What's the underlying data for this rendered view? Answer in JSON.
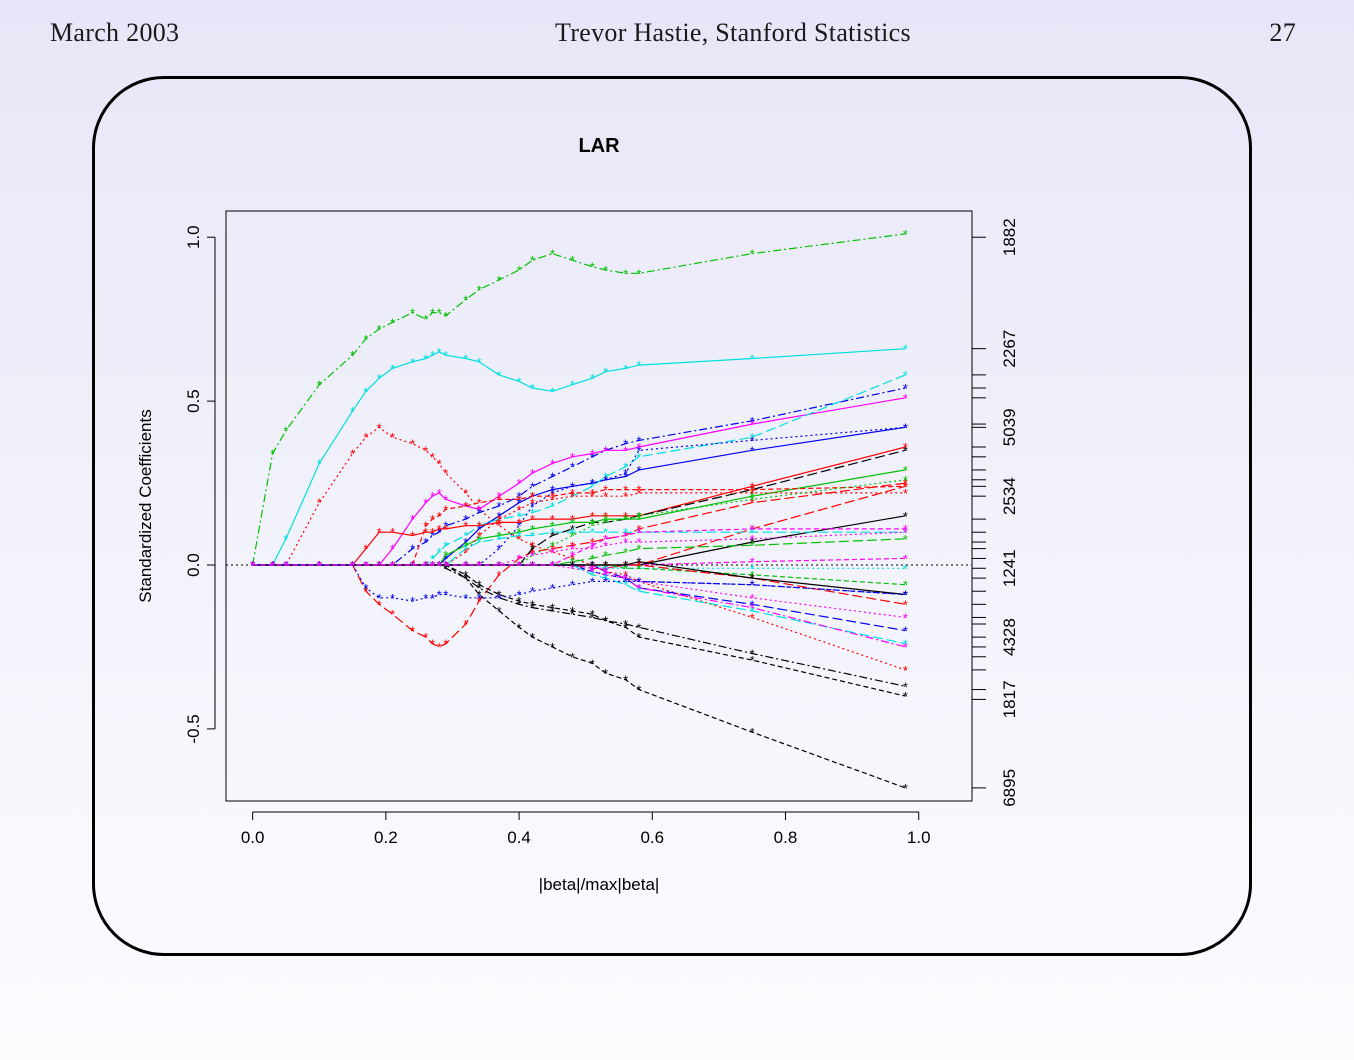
{
  "header": {
    "left": "March 2003",
    "center": "Trevor Hastie, Stanford Statistics",
    "right": "27"
  },
  "chart_data": {
    "type": "line",
    "title": "LAR",
    "xlabel": "|beta|/max|beta|",
    "ylabel": "Standardized Coefficients",
    "xlim": [
      -0.04,
      1.08
    ],
    "ylim": [
      -0.72,
      1.08
    ],
    "x_ticks": [
      "0.0",
      "0.2",
      "0.4",
      "0.6",
      "0.8",
      "1.0"
    ],
    "y_ticks": [
      "-0.5",
      "0.0",
      "0.5",
      "1.0"
    ],
    "right_axis_labels": [
      {
        "label": "1882",
        "y": 1.0
      },
      {
        "label": "2267",
        "y": 0.66
      },
      {
        "label": "5039",
        "y": 0.42
      },
      {
        "label": "2534",
        "y": 0.21
      },
      {
        "label": "1241",
        "y": -0.01
      },
      {
        "label": "4328",
        "y": -0.22
      },
      {
        "label": "1817",
        "y": -0.41
      },
      {
        "label": "6895",
        "y": -0.68
      }
    ],
    "right_axis_extra_ticks": [
      0.58,
      0.54,
      0.51,
      0.43,
      0.36,
      0.33,
      0.29,
      0.26,
      0.24,
      0.14,
      0.1,
      0.07,
      0.05,
      0.02,
      -0.04,
      -0.08,
      -0.12,
      -0.16,
      -0.18,
      -0.25,
      -0.28,
      -0.32,
      -0.38
    ],
    "x_steps": [
      0.0,
      0.03,
      0.05,
      0.1,
      0.15,
      0.17,
      0.19,
      0.21,
      0.24,
      0.26,
      0.27,
      0.28,
      0.29,
      0.32,
      0.34,
      0.37,
      0.4,
      0.42,
      0.45,
      0.48,
      0.51,
      0.53,
      0.56,
      0.58,
      0.75,
      0.98
    ],
    "series": [
      {
        "color": "#00c000",
        "dash": "8,3,2,3",
        "values": [
          0.0,
          0.34,
          0.41,
          0.55,
          0.64,
          0.69,
          0.72,
          0.74,
          0.77,
          0.75,
          0.77,
          0.77,
          0.76,
          0.81,
          0.84,
          0.87,
          0.9,
          0.93,
          0.95,
          0.93,
          0.91,
          0.9,
          0.89,
          0.89,
          0.95,
          1.01
        ]
      },
      {
        "color": "#00e0e0",
        "dash": "",
        "values": [
          0.0,
          0.0,
          0.08,
          0.31,
          0.47,
          0.53,
          0.57,
          0.6,
          0.62,
          0.63,
          0.64,
          0.65,
          0.64,
          0.63,
          0.62,
          0.58,
          0.56,
          0.54,
          0.53,
          0.55,
          0.57,
          0.59,
          0.6,
          0.61,
          0.63,
          0.66
        ]
      },
      {
        "color": "#ff0000",
        "dash": "2,3",
        "values": [
          0.0,
          0.0,
          0.0,
          0.19,
          0.34,
          0.39,
          0.42,
          0.39,
          0.37,
          0.35,
          0.33,
          0.31,
          0.28,
          0.22,
          0.17,
          0.12,
          0.08,
          0.06,
          0.04,
          0.02,
          0.0,
          -0.02,
          -0.03,
          -0.05,
          -0.16,
          -0.32
        ]
      },
      {
        "color": "#ff0000",
        "dash": "10,4",
        "values": [
          0.0,
          0.0,
          0.0,
          0.0,
          0.0,
          -0.08,
          -0.12,
          -0.15,
          -0.2,
          -0.22,
          -0.24,
          -0.25,
          -0.24,
          -0.18,
          -0.11,
          -0.03,
          0.02,
          0.04,
          0.05,
          0.06,
          0.07,
          0.08,
          0.09,
          0.11,
          0.19,
          0.25
        ]
      },
      {
        "color": "#000000",
        "dash": "5,3",
        "values": [
          0.0,
          0.0,
          0.0,
          0.0,
          0.0,
          0.0,
          0.0,
          0.0,
          0.0,
          0.0,
          0.0,
          0.0,
          0.0,
          -0.04,
          -0.09,
          -0.14,
          -0.19,
          -0.22,
          -0.25,
          -0.28,
          -0.3,
          -0.33,
          -0.35,
          -0.38,
          -0.51,
          -0.68
        ]
      },
      {
        "color": "#000000",
        "dash": "8,3,2,3",
        "values": [
          0.0,
          0.0,
          0.0,
          0.0,
          0.0,
          0.0,
          0.0,
          0.0,
          0.0,
          0.0,
          0.0,
          0.0,
          -0.01,
          -0.04,
          -0.07,
          -0.1,
          -0.12,
          -0.13,
          -0.14,
          -0.15,
          -0.16,
          -0.17,
          -0.18,
          -0.19,
          -0.27,
          -0.37
        ]
      },
      {
        "color": "#000000",
        "dash": "5,3",
        "values": [
          0.0,
          0.0,
          0.0,
          0.0,
          0.0,
          0.0,
          0.0,
          0.0,
          0.0,
          0.0,
          0.0,
          0.0,
          0.0,
          -0.03,
          -0.06,
          -0.09,
          -0.11,
          -0.12,
          -0.13,
          -0.14,
          -0.15,
          -0.17,
          -0.19,
          -0.22,
          -0.29,
          -0.4
        ]
      },
      {
        "color": "#0000ee",
        "dash": "8,3,2,3",
        "values": [
          0.0,
          0.0,
          0.0,
          0.0,
          0.0,
          0.0,
          0.0,
          0.0,
          0.05,
          0.07,
          0.09,
          0.1,
          0.12,
          0.14,
          0.16,
          0.18,
          0.21,
          0.24,
          0.27,
          0.3,
          0.33,
          0.35,
          0.37,
          0.38,
          0.44,
          0.54
        ]
      },
      {
        "color": "#ff00ff",
        "dash": "",
        "values": [
          0.0,
          0.0,
          0.0,
          0.0,
          0.0,
          0.0,
          0.0,
          0.05,
          0.14,
          0.19,
          0.21,
          0.22,
          0.2,
          0.18,
          0.17,
          0.21,
          0.25,
          0.28,
          0.31,
          0.33,
          0.34,
          0.35,
          0.35,
          0.36,
          0.43,
          0.51
        ]
      },
      {
        "color": "#0000ee",
        "dash": "",
        "values": [
          0.0,
          0.0,
          0.0,
          0.0,
          0.0,
          0.0,
          0.0,
          0.0,
          0.0,
          0.0,
          0.0,
          0.0,
          0.02,
          0.07,
          0.11,
          0.15,
          0.19,
          0.21,
          0.23,
          0.24,
          0.25,
          0.26,
          0.27,
          0.29,
          0.35,
          0.42
        ]
      },
      {
        "color": "#00e0e0",
        "dash": "10,4",
        "values": [
          0.0,
          0.0,
          0.0,
          0.0,
          0.0,
          0.0,
          0.0,
          0.0,
          0.0,
          0.0,
          0.02,
          0.04,
          0.06,
          0.09,
          0.12,
          0.14,
          0.15,
          0.16,
          0.18,
          0.21,
          0.24,
          0.27,
          0.3,
          0.33,
          0.39,
          0.58
        ]
      },
      {
        "color": "#0000ee",
        "dash": "2,3",
        "values": [
          0.0,
          0.0,
          0.0,
          0.0,
          0.0,
          0.0,
          0.0,
          0.0,
          0.0,
          0.0,
          0.0,
          0.0,
          0.0,
          0.0,
          0.0,
          0.05,
          0.12,
          0.18,
          0.22,
          0.24,
          0.25,
          0.26,
          0.28,
          0.35,
          0.38,
          0.42
        ]
      },
      {
        "color": "#ff0000",
        "dash": "",
        "values": [
          0.0,
          0.0,
          0.0,
          0.0,
          0.0,
          0.05,
          0.1,
          0.1,
          0.09,
          0.1,
          0.1,
          0.11,
          0.11,
          0.12,
          0.12,
          0.13,
          0.13,
          0.14,
          0.14,
          0.14,
          0.15,
          0.15,
          0.15,
          0.15,
          0.24,
          0.36
        ]
      },
      {
        "color": "#000000",
        "dash": "10,4",
        "values": [
          0.0,
          0.0,
          0.0,
          0.0,
          0.0,
          0.0,
          0.0,
          0.0,
          0.0,
          0.0,
          0.0,
          0.0,
          0.0,
          0.0,
          0.0,
          0.0,
          0.0,
          0.05,
          0.09,
          0.11,
          0.13,
          0.13,
          0.14,
          0.15,
          0.23,
          0.35
        ]
      },
      {
        "color": "#00c000",
        "dash": "",
        "values": [
          0.0,
          0.0,
          0.0,
          0.0,
          0.0,
          0.0,
          0.0,
          0.0,
          0.0,
          0.0,
          0.0,
          0.0,
          0.03,
          0.06,
          0.08,
          0.09,
          0.1,
          0.11,
          0.12,
          0.13,
          0.13,
          0.14,
          0.14,
          0.14,
          0.21,
          0.29
        ]
      },
      {
        "color": "#ff0000",
        "dash": "5,3",
        "values": [
          0.0,
          0.0,
          0.0,
          0.0,
          0.0,
          0.0,
          0.0,
          0.0,
          0.0,
          0.12,
          0.14,
          0.15,
          0.17,
          0.18,
          0.19,
          0.2,
          0.2,
          0.21,
          0.21,
          0.22,
          0.22,
          0.23,
          0.23,
          0.23,
          0.23,
          0.24
        ]
      },
      {
        "color": "#ff0000",
        "dash": "2,3",
        "values": [
          0.0,
          0.0,
          0.0,
          0.0,
          0.0,
          0.0,
          0.0,
          0.0,
          0.0,
          0.0,
          0.0,
          0.0,
          0.0,
          0.04,
          0.09,
          0.14,
          0.17,
          0.19,
          0.2,
          0.21,
          0.21,
          0.21,
          0.21,
          0.22,
          0.22,
          0.22
        ]
      },
      {
        "color": "#00c000",
        "dash": "2,3",
        "values": [
          0.0,
          0.0,
          0.0,
          0.0,
          0.0,
          0.0,
          0.0,
          0.0,
          0.0,
          0.0,
          0.0,
          0.0,
          0.0,
          0.0,
          0.0,
          0.0,
          0.0,
          0.03,
          0.06,
          0.09,
          0.12,
          0.13,
          0.14,
          0.15,
          0.2,
          0.26
        ]
      },
      {
        "color": "#ff0000",
        "dash": "10,4",
        "values": [
          0.0,
          0.0,
          0.0,
          0.0,
          0.0,
          0.0,
          0.0,
          0.0,
          0.0,
          0.0,
          0.0,
          0.0,
          0.0,
          0.0,
          0.0,
          0.0,
          0.0,
          0.0,
          0.0,
          0.0,
          -0.01,
          -0.01,
          0.0,
          0.0,
          0.11,
          0.24
        ]
      },
      {
        "color": "#000000",
        "dash": "",
        "values": [
          0.0,
          0.0,
          0.0,
          0.0,
          0.0,
          0.0,
          0.0,
          0.0,
          0.0,
          0.0,
          0.0,
          0.0,
          0.0,
          0.0,
          0.0,
          0.0,
          0.0,
          0.0,
          0.0,
          0.0,
          0.0,
          0.0,
          0.0,
          0.0,
          0.07,
          0.15
        ]
      },
      {
        "color": "#00e0e0",
        "dash": "10,4",
        "values": [
          0.0,
          0.0,
          0.0,
          0.0,
          0.0,
          0.0,
          0.0,
          0.0,
          0.0,
          0.0,
          0.0,
          0.0,
          0.0,
          0.05,
          0.07,
          0.08,
          0.09,
          0.09,
          0.1,
          0.1,
          0.1,
          0.1,
          0.1,
          0.1,
          0.1,
          0.1
        ]
      },
      {
        "color": "#ff00ff",
        "dash": "2,3",
        "values": [
          0.0,
          0.0,
          0.0,
          0.0,
          0.0,
          0.0,
          0.0,
          0.0,
          0.0,
          0.0,
          0.0,
          0.0,
          0.0,
          0.0,
          0.0,
          0.0,
          0.02,
          0.03,
          0.04,
          0.05,
          0.05,
          0.06,
          0.07,
          0.07,
          0.08,
          0.1
        ]
      },
      {
        "color": "#00c000",
        "dash": "10,4",
        "values": [
          0.0,
          0.0,
          0.0,
          0.0,
          0.0,
          0.0,
          0.0,
          0.0,
          0.0,
          0.0,
          0.0,
          0.0,
          0.0,
          0.0,
          0.0,
          0.0,
          0.0,
          0.0,
          0.0,
          0.01,
          0.02,
          0.03,
          0.04,
          0.05,
          0.06,
          0.08
        ]
      },
      {
        "color": "#ff00ff",
        "dash": "5,3",
        "values": [
          0.0,
          0.0,
          0.0,
          0.0,
          0.0,
          0.0,
          0.0,
          0.0,
          0.0,
          0.0,
          0.0,
          0.0,
          0.0,
          0.0,
          0.0,
          0.0,
          0.0,
          0.0,
          0.0,
          0.0,
          -0.01,
          -0.01,
          0.0,
          0.0,
          0.01,
          0.02
        ]
      },
      {
        "color": "#00e0e0",
        "dash": "2,3",
        "values": [
          0.0,
          0.0,
          0.0,
          0.0,
          0.0,
          0.0,
          0.0,
          0.0,
          0.0,
          0.0,
          0.0,
          0.0,
          0.0,
          0.0,
          0.0,
          0.0,
          0.0,
          0.0,
          0.0,
          0.0,
          0.0,
          -0.01,
          -0.01,
          -0.01,
          -0.01,
          -0.01
        ]
      },
      {
        "color": "#00c000",
        "dash": "5,3",
        "values": [
          0.0,
          0.0,
          0.0,
          0.0,
          0.0,
          0.0,
          0.0,
          0.0,
          0.0,
          0.0,
          0.0,
          0.0,
          0.0,
          0.0,
          0.0,
          0.0,
          0.0,
          0.0,
          0.0,
          0.0,
          0.0,
          0.0,
          -0.01,
          -0.01,
          -0.03,
          -0.06
        ]
      },
      {
        "color": "#0000ee",
        "dash": "5,3",
        "values": [
          0.0,
          0.0,
          0.0,
          0.0,
          0.0,
          0.0,
          0.0,
          0.0,
          0.0,
          0.0,
          0.0,
          0.0,
          0.0,
          0.0,
          0.0,
          0.0,
          0.0,
          0.0,
          0.0,
          0.0,
          -0.02,
          -0.03,
          -0.04,
          -0.05,
          -0.06,
          -0.09
        ]
      },
      {
        "color": "#ff0000",
        "dash": "10,4",
        "values": [
          0.0,
          0.0,
          0.0,
          0.0,
          0.0,
          0.0,
          0.0,
          0.0,
          0.0,
          0.0,
          0.0,
          0.0,
          0.0,
          0.0,
          0.0,
          0.0,
          0.0,
          0.0,
          0.0,
          0.0,
          0.0,
          0.0,
          0.0,
          0.0,
          -0.04,
          -0.12
        ]
      },
      {
        "color": "#ff00ff",
        "dash": "2,3",
        "values": [
          0.0,
          0.0,
          0.0,
          0.0,
          0.0,
          0.0,
          0.0,
          0.0,
          0.0,
          0.0,
          0.0,
          0.0,
          0.0,
          0.0,
          0.0,
          0.0,
          0.0,
          0.0,
          0.0,
          -0.01,
          -0.02,
          -0.03,
          -0.04,
          -0.05,
          -0.1,
          -0.16
        ]
      },
      {
        "color": "#0000ee",
        "dash": "10,4",
        "values": [
          0.0,
          0.0,
          0.0,
          0.0,
          0.0,
          0.0,
          0.0,
          0.0,
          0.0,
          0.0,
          0.0,
          0.0,
          0.0,
          0.0,
          0.0,
          0.0,
          0.0,
          0.0,
          0.0,
          0.0,
          0.0,
          -0.02,
          -0.04,
          -0.07,
          -0.12,
          -0.2
        ]
      },
      {
        "color": "#00e0e0",
        "dash": "10,4",
        "values": [
          0.0,
          0.0,
          0.0,
          0.0,
          0.0,
          0.0,
          0.0,
          0.0,
          0.0,
          0.0,
          0.0,
          0.0,
          0.0,
          0.0,
          0.0,
          0.0,
          0.0,
          0.0,
          0.0,
          0.0,
          -0.03,
          -0.04,
          -0.06,
          -0.08,
          -0.14,
          -0.24
        ]
      },
      {
        "color": "#ff00ff",
        "dash": "8,3,2,3",
        "values": [
          0.0,
          0.0,
          0.0,
          0.0,
          0.0,
          0.0,
          0.0,
          0.0,
          0.0,
          0.0,
          0.0,
          0.0,
          0.0,
          0.0,
          0.0,
          0.0,
          0.0,
          0.0,
          0.0,
          0.0,
          0.0,
          -0.02,
          -0.04,
          -0.07,
          -0.13,
          -0.25
        ]
      },
      {
        "color": "#000000",
        "dash": "",
        "values": [
          0.0,
          0.0,
          0.0,
          0.0,
          0.0,
          0.0,
          0.0,
          0.0,
          0.0,
          0.0,
          0.0,
          0.0,
          0.0,
          0.0,
          0.0,
          0.0,
          0.0,
          0.0,
          0.0,
          0.0,
          0.0,
          0.0,
          0.0,
          0.01,
          -0.04,
          -0.09
        ]
      },
      {
        "color": "#0000ee",
        "dash": "2,3",
        "values": [
          0.0,
          0.0,
          0.0,
          0.0,
          0.0,
          -0.07,
          -0.1,
          -0.1,
          -0.11,
          -0.1,
          -0.1,
          -0.09,
          -0.09,
          -0.1,
          -0.1,
          -0.1,
          -0.09,
          -0.08,
          -0.07,
          -0.06,
          -0.05,
          -0.05,
          -0.05,
          -0.05,
          -0.06,
          -0.09
        ]
      },
      {
        "color": "#ff00ff",
        "dash": "5,3",
        "values": [
          0.0,
          0.0,
          0.0,
          0.0,
          0.0,
          0.0,
          0.0,
          0.0,
          0.0,
          0.0,
          0.0,
          0.0,
          0.0,
          0.0,
          0.0,
          0.0,
          0.0,
          0.0,
          0.0,
          0.03,
          0.06,
          0.08,
          0.09,
          0.1,
          0.11,
          0.11
        ]
      }
    ]
  }
}
